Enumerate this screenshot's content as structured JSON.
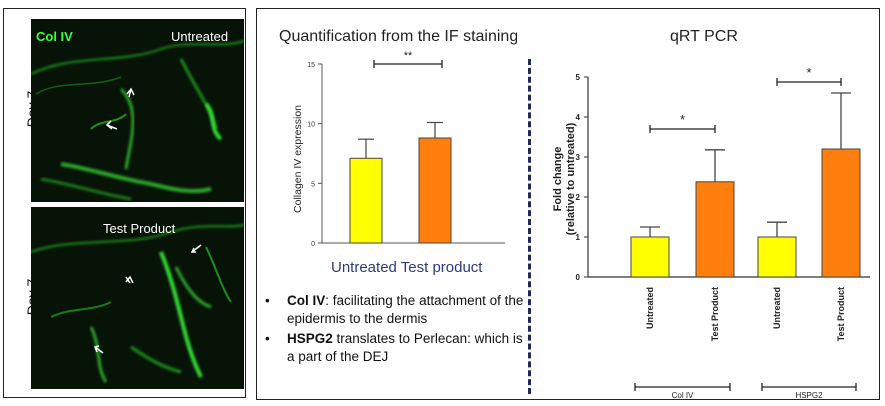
{
  "left": {
    "top_image": {
      "tag": "Col IV",
      "condition": "Untreated",
      "day": "Day 7"
    },
    "bottom_image": {
      "condition": "Test Product",
      "day": "Day 7"
    }
  },
  "colors": {
    "untreated": "#ffff00",
    "test": "#ff7f0e",
    "bar_stroke": "#444444",
    "fluorescence": "#33dd33"
  },
  "chart_data": [
    {
      "type": "bar",
      "title": "Quantification from the IF staining",
      "xlabel": "Untreated Test product",
      "ylabel": "Collagen IV expression",
      "categories": [
        "Untreated",
        "Test product"
      ],
      "values": [
        7.1,
        8.8
      ],
      "errors": [
        1.6,
        1.3
      ],
      "ylim": [
        0,
        15
      ],
      "yticks": [
        0,
        5,
        10,
        15
      ],
      "significance": "**"
    },
    {
      "type": "bar",
      "title": "qRT PCR",
      "ylabel": "Fold change (relative to untreated)",
      "ylabel_line1": "Fold change",
      "ylabel_line2": "(relative to untreated)",
      "categories": [
        "Untreated",
        "Test Product",
        "Untreated",
        "Test Product"
      ],
      "groups": [
        "Col IV",
        "HSPG2"
      ],
      "values": [
        1.0,
        2.38,
        1.0,
        3.2
      ],
      "errors": [
        0.25,
        0.8,
        0.37,
        1.4
      ],
      "ylim": [
        0,
        5
      ],
      "yticks": [
        0,
        1,
        2,
        3,
        4,
        5
      ],
      "significance": [
        "*",
        "*"
      ]
    }
  ],
  "bullets": [
    {
      "bold": "Col IV",
      "text": ": facilitating the attachment of the epidermis to the dermis"
    },
    {
      "bold": "HSPG2",
      "text": " translates to Perlecan: which is a part of the DEJ"
    }
  ]
}
